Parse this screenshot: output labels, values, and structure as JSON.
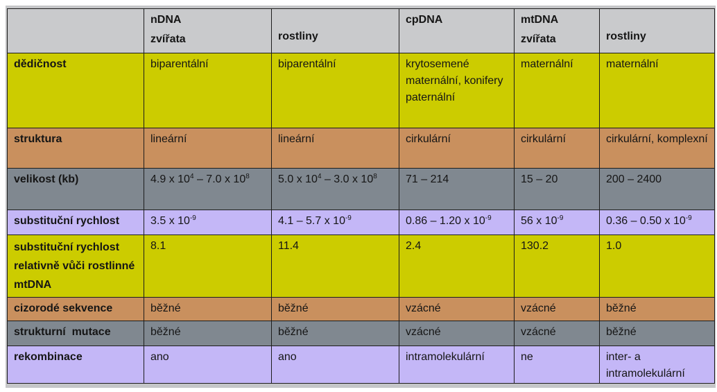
{
  "columns": [
    {
      "group": "",
      "sub": ""
    },
    {
      "group": "nDNA",
      "sub": "zvířata"
    },
    {
      "group": "",
      "sub": "rostliny"
    },
    {
      "group": "cpDNA",
      "sub": ""
    },
    {
      "group": "mtDNA",
      "sub": "zvířata"
    },
    {
      "group": "",
      "sub": "rostliny"
    }
  ],
  "rows": [
    {
      "label": "dědičnost",
      "color": "#cccc00",
      "cells": [
        "biparentální",
        "biparentální",
        "krytosemené maternální, konifery paternální",
        "maternální",
        "maternální"
      ]
    },
    {
      "label": "struktura",
      "color": "#c9905e",
      "cells": [
        "lineární",
        "lineární",
        "cirkulární",
        "cirkulární",
        "cirkulární, komplexní"
      ]
    },
    {
      "label": "velikost (kb)",
      "color": "#808890",
      "cells": [
        {
          "base": "4.9 x 10",
          "exp": "4",
          "mid": " – 7.0 x 10",
          "exp2": "8"
        },
        {
          "base": "5.0 x 10",
          "exp": "4",
          "mid": " – 3.0 x 10",
          "exp2": "8"
        },
        "71 – 214",
        "15 – 20",
        "200 – 2400"
      ]
    },
    {
      "label": "substituční rychlost",
      "color": "#c4b7f7",
      "cells": [
        {
          "base": "3.5 x 10",
          "exp": "-9"
        },
        {
          "base": "4.1 – 5.7 x 10",
          "exp": "-9"
        },
        {
          "base": "0.86 – 1.20 x 10",
          "exp": "-9"
        },
        {
          "base": "56 x 10",
          "exp": "-9"
        },
        {
          "base": "0.36 – 0.50 x 10",
          "exp": "-9"
        }
      ]
    },
    {
      "label": "substituční rychlost relativně vůči rostlinné mtDNA",
      "color": "#cccc00",
      "cells": [
        "8.1",
        "11.4",
        "2.4",
        "130.2",
        "1.0"
      ]
    },
    {
      "label": "cizorodé sekvence",
      "color": "#c9905e",
      "cells": [
        "běžné",
        "běžné",
        "vzácné",
        "vzácné",
        "běžné"
      ]
    },
    {
      "label": "strukturní  mutace",
      "color": "#808890",
      "cells": [
        "běžné",
        "běžné",
        "vzácné",
        "vzácné",
        "běžné"
      ]
    },
    {
      "label": "rekombinace",
      "color": "#c4b7f7",
      "cells": [
        "ano",
        "ano",
        "intramolekulární",
        "ne",
        "inter- a intramolekulární"
      ]
    }
  ]
}
